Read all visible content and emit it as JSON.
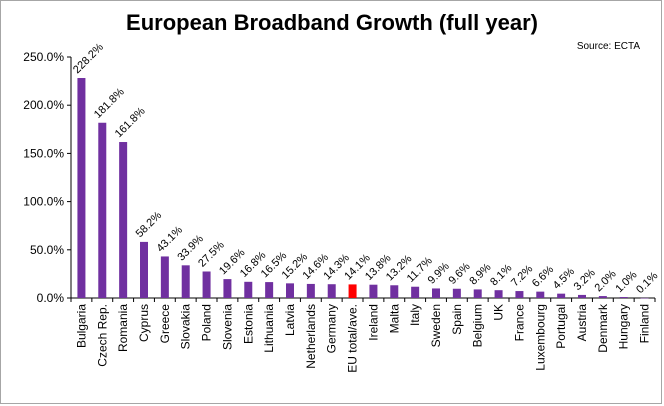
{
  "title": "European Broadband Growth (full year)",
  "source": "Source: ECTA",
  "chart_data": {
    "type": "bar",
    "title": "European Broadband Growth (full year)",
    "xlabel": "",
    "ylabel": "",
    "ylim": [
      0,
      250
    ],
    "yticks": [
      "0.0%",
      "50.0%",
      "100.0%",
      "150.0%",
      "200.0%",
      "250.0%"
    ],
    "grid": false,
    "legend": "none",
    "bar_color": "#7030a0",
    "highlight_color": "#ff0000",
    "highlight_category": "EU total/ave.",
    "categories": [
      "Bulgaria",
      "Czech Rep.",
      "Romania",
      "Cyprus",
      "Greece",
      "Slovakia",
      "Poland",
      "Slovenia",
      "Estonia",
      "Lithuania",
      "Latvia",
      "Netherlands",
      "Germany",
      "EU total/ave.",
      "Ireland",
      "Malta",
      "Italy",
      "Sweden",
      "Spain",
      "Belgium",
      "UK",
      "France",
      "Luxembourg",
      "Portugal",
      "Austria",
      "Denmark",
      "Hungary",
      "Finland"
    ],
    "values": [
      228.2,
      181.8,
      161.8,
      58.2,
      43.1,
      33.9,
      27.5,
      19.6,
      16.8,
      16.5,
      15.2,
      14.6,
      14.3,
      14.1,
      13.8,
      13.2,
      11.7,
      9.9,
      9.6,
      8.9,
      8.1,
      7.2,
      6.6,
      4.5,
      3.2,
      2.0,
      1.0,
      0.1
    ],
    "data_labels": [
      "228.2%",
      "181.8%",
      "161.8%",
      "58.2%",
      "43.1%",
      "33.9%",
      "27.5%",
      "19.6%",
      "16.8%",
      "16.5%",
      "15.2%",
      "14.6%",
      "14.3%",
      "14.1%",
      "13.8%",
      "13.2%",
      "11.7%",
      "9.9%",
      "9.6%",
      "8.9%",
      "8.1%",
      "7.2%",
      "6.6%",
      "4.5%",
      "3.2%",
      "2.0%",
      "1.0%",
      "0.1%"
    ]
  }
}
